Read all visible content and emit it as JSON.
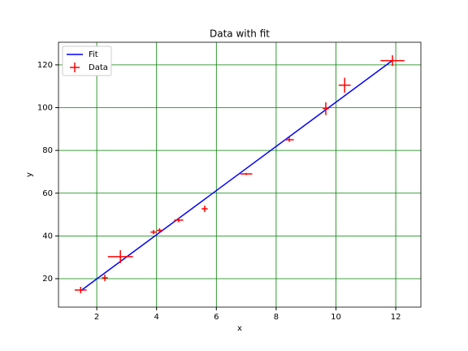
{
  "chart_data": {
    "type": "errorbar",
    "title": "Data with fit",
    "x_label": "x",
    "y_label": "y",
    "xlim": [
      0.72,
      12.84
    ],
    "ylim": [
      6.7,
      130.6
    ],
    "xticks": [
      2,
      4,
      6,
      8,
      10,
      12
    ],
    "yticks": [
      20,
      40,
      60,
      80,
      100,
      120
    ],
    "grid": true,
    "grid_color": "#008000",
    "legend": "upper left",
    "series": [
      {
        "name": "Fit",
        "kind": "line",
        "color": "#0000ff",
        "x": [
          1.46,
          11.89
        ],
        "values": [
          14.3,
          122.1
        ]
      },
      {
        "name": "Data",
        "kind": "errorbar",
        "color": "#ff0000",
        "x": [
          1.46,
          2.27,
          2.79,
          3.9,
          4.1,
          4.74,
          5.61,
          7.0,
          8.44,
          9.66,
          10.29,
          11.89
        ],
        "values": [
          14.7,
          20.4,
          30.3,
          41.8,
          42.6,
          47.4,
          52.7,
          69.0,
          85.0,
          99.5,
          110.5,
          122.0
        ],
        "xerr": [
          0.2,
          0.1,
          0.42,
          0.1,
          0.1,
          0.15,
          0.1,
          0.2,
          0.15,
          0.1,
          0.2,
          0.4
        ],
        "yerr": [
          1.5,
          1.5,
          3,
          1,
          1,
          1,
          1.5,
          0.5,
          1,
          3,
          3.5,
          2.5
        ]
      }
    ]
  }
}
